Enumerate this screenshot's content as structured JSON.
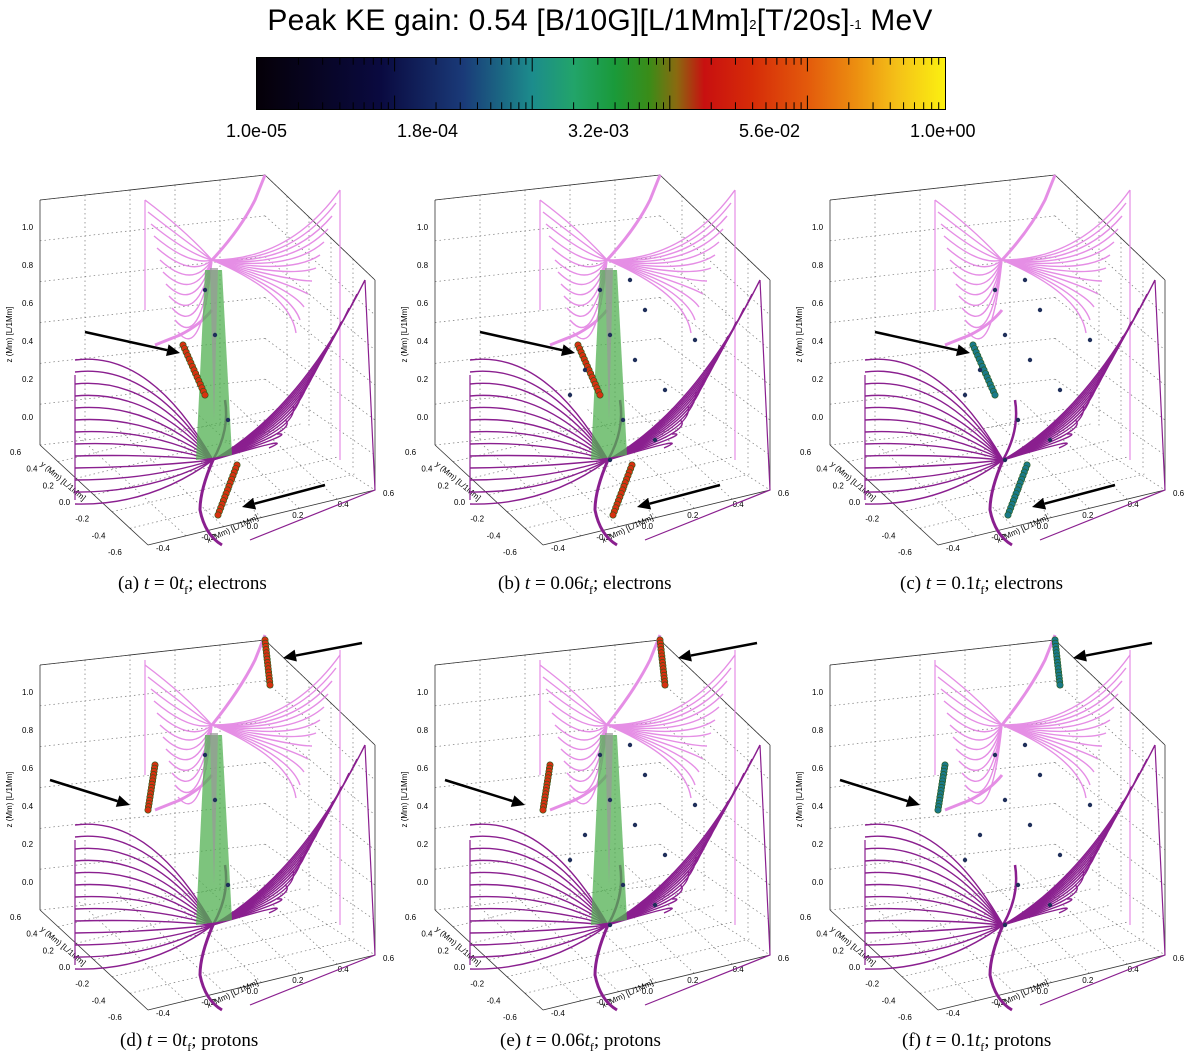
{
  "colorbar": {
    "title": "Peak KE gain: 0.54 [B/10G][L/1Mm]",
    "title_part2": "[T/20s]",
    "title_part3": " MeV",
    "sup1": "2",
    "sup2": "-1",
    "tick_labels": [
      "1.0e-05",
      "1.8e-04",
      "3.2e-03",
      "5.6e-02",
      "1.0e+00"
    ]
  },
  "axis_labels": {
    "z": "z (Mm) [L/1Mm]",
    "x": "x (Mm) [L/1Mm]",
    "y": "y (Mm) [L/1Mm]",
    "z_ticks": [
      "0.0",
      "0.2",
      "0.4",
      "0.6",
      "0.8",
      "1.0"
    ],
    "x_ticks": [
      "-0.4",
      "-0.2",
      "0.0",
      "0.2",
      "0.4",
      "0.6"
    ],
    "y_ticks": [
      "-0.6",
      "-0.4",
      "-0.2",
      "0.0",
      "0.2",
      "0.4",
      "0.6"
    ]
  },
  "panels": [
    {
      "label": "(a)",
      "time_value": "0",
      "time_unit": "t",
      "time_sub": "f",
      "species": "electrons",
      "particle_color": "#d83010"
    },
    {
      "label": "(b)",
      "time_value": "0.06",
      "time_unit": "t",
      "time_sub": "f",
      "species": "electrons",
      "particle_color": "#d83010"
    },
    {
      "label": "(c)",
      "time_value": "0.1",
      "time_unit": "t",
      "time_sub": "f",
      "species": "electrons",
      "particle_color": "#1a7a8a"
    },
    {
      "label": "(d)",
      "time_value": "0",
      "time_unit": "t",
      "time_sub": "f",
      "species": "protons",
      "particle_color": "#d83010"
    },
    {
      "label": "(e)",
      "time_value": "0.06",
      "time_unit": "t",
      "time_sub": "f",
      "species": "protons",
      "particle_color": "#d83010"
    },
    {
      "label": "(f)",
      "time_value": "0.1",
      "time_unit": "t",
      "time_sub": "f",
      "species": "protons",
      "particle_color": "#1a7a8a"
    }
  ],
  "colors": {
    "fan_light": "#e58ee5",
    "fan_dark": "#8a1f8f",
    "current_sheet": "#52b052",
    "arrow": "#000000"
  }
}
